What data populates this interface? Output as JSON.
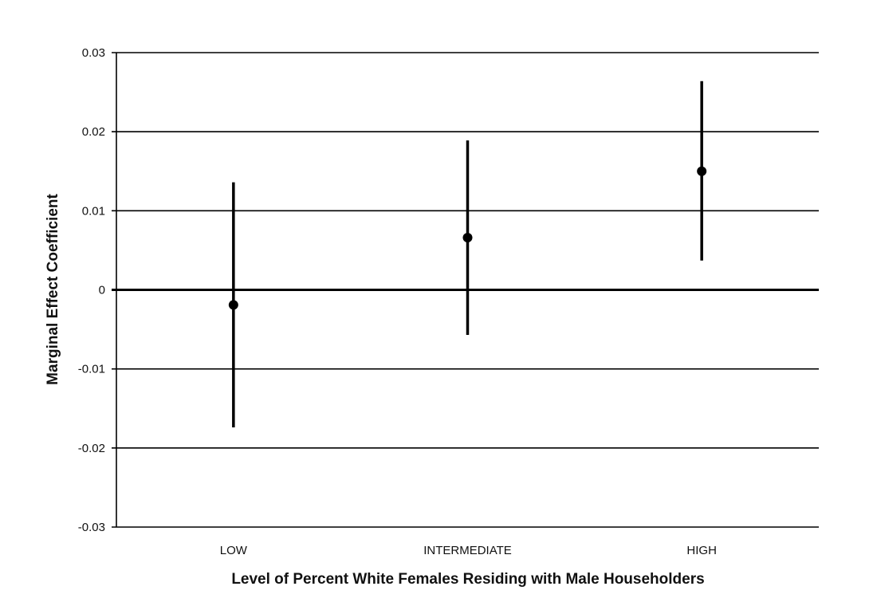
{
  "chart_data": {
    "type": "scatter",
    "title": "",
    "xlabel": "Level of Percent White Females Residing with Male Householders",
    "ylabel": "Marginal Effect Coefficient",
    "categories": [
      "LOW",
      "INTERMEDIATE",
      "HIGH"
    ],
    "points": [
      {
        "category": "LOW",
        "value": -0.0019,
        "lower": -0.0174,
        "upper": 0.0136
      },
      {
        "category": "INTERMEDIATE",
        "value": 0.0066,
        "lower": -0.0057,
        "upper": 0.0189
      },
      {
        "category": "HIGH",
        "value": 0.015,
        "lower": 0.0037,
        "upper": 0.0264
      }
    ],
    "ylim": [
      -0.03,
      0.03
    ],
    "yticks": [
      "0.03",
      "0.02",
      "0.01",
      "0",
      "-0.01",
      "-0.02",
      "-0.03"
    ],
    "ytick_values": [
      0.03,
      0.02,
      0.01,
      0,
      -0.01,
      -0.02,
      -0.03
    ],
    "grid": true,
    "colors": {
      "marker": "#000000",
      "grid": "#000000"
    }
  }
}
